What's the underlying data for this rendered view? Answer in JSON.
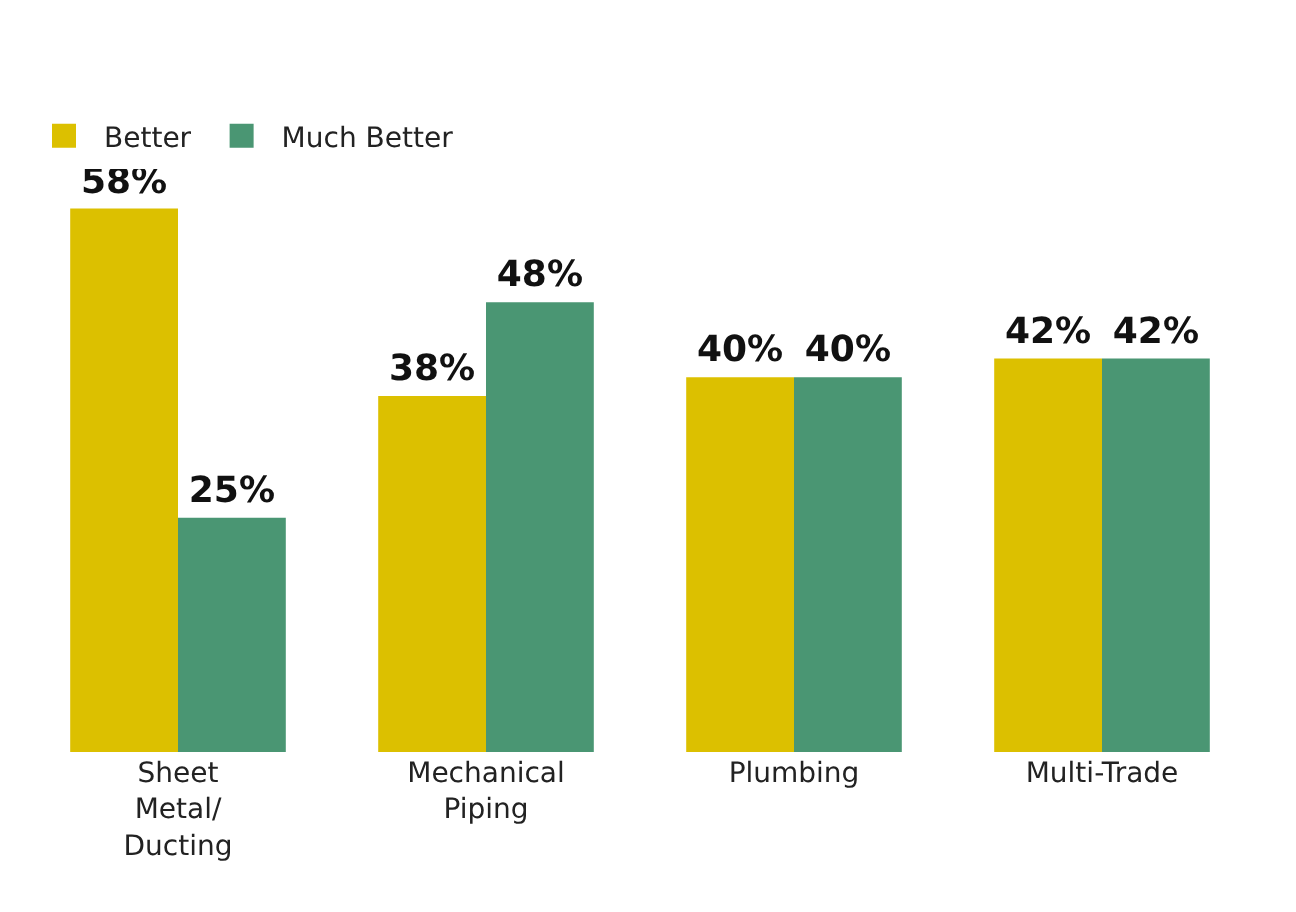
{
  "chart_data": {
    "type": "bar",
    "categories": [
      "Sheet Metal/ Ducting",
      "Mechanical Piping",
      "Plumbing",
      "Multi-Trade"
    ],
    "series": [
      {
        "name": "Better",
        "color": "#dcc000",
        "values": [
          58,
          38,
          40,
          42
        ],
        "value_labels": [
          "58%",
          "38%",
          "40%",
          "42%"
        ]
      },
      {
        "name": "Much Better",
        "color": "#4a9673",
        "values": [
          25,
          48,
          40,
          42
        ],
        "value_labels": [
          "25%",
          "48%",
          "40%",
          "42%"
        ]
      }
    ],
    "legend": "top left",
    "grid": false
  }
}
